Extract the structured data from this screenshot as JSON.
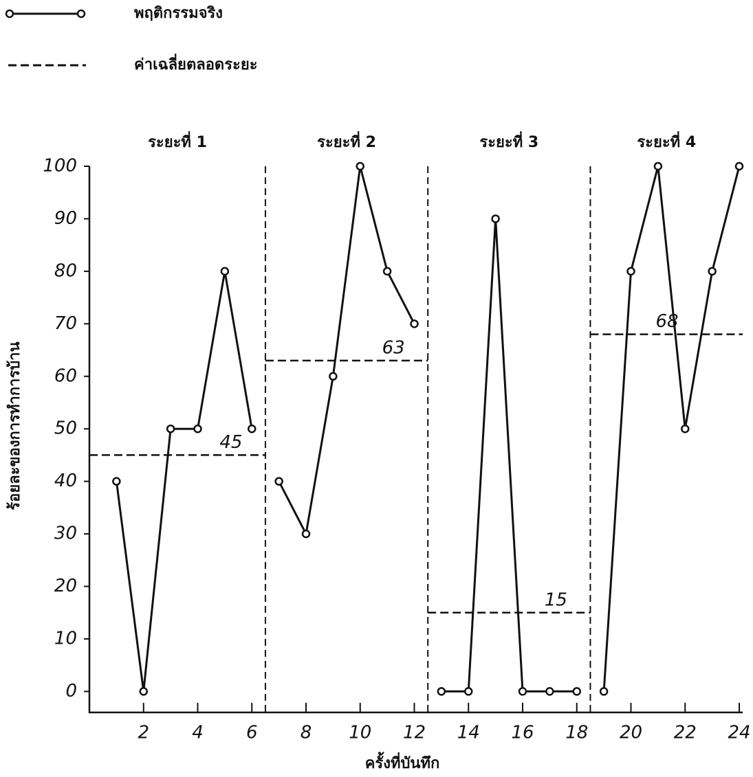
{
  "chart_data": {
    "type": "line",
    "legend": {
      "actual": "พฤติกรรมจริง",
      "mean": "ค่าเฉลี่ยตลอดระยะ"
    },
    "xlabel": "ครั้งที่บันทึก",
    "ylabel": "ร้อยละของการทำการบ้าน",
    "xlim": [
      0,
      24
    ],
    "ylim": [
      -4,
      100
    ],
    "xticks": [
      2,
      4,
      6,
      8,
      10,
      12,
      14,
      16,
      18,
      20,
      22,
      24
    ],
    "yticks": [
      0,
      10,
      20,
      30,
      40,
      50,
      60,
      70,
      80,
      90,
      100
    ],
    "color": "#111111",
    "phases": [
      {
        "label": "ระยะที่ 1",
        "x": [
          1,
          2,
          3,
          4,
          5,
          6
        ],
        "values": [
          40,
          0,
          50,
          50,
          80,
          50
        ],
        "mean": 45
      },
      {
        "label": "ระยะที่ 2",
        "x": [
          7,
          8,
          9,
          10,
          11,
          12
        ],
        "values": [
          40,
          30,
          60,
          100,
          80,
          70
        ],
        "mean": 63
      },
      {
        "label": "ระยะที่ 3",
        "x": [
          13,
          14,
          15,
          16,
          17,
          18
        ],
        "values": [
          0,
          0,
          90,
          0,
          0,
          0
        ],
        "mean": 15
      },
      {
        "label": "ระยะที่ 4",
        "x": [
          19,
          20,
          21,
          22,
          23,
          24
        ],
        "values": [
          0,
          80,
          100,
          50,
          80,
          100
        ],
        "mean": 68
      }
    ]
  }
}
